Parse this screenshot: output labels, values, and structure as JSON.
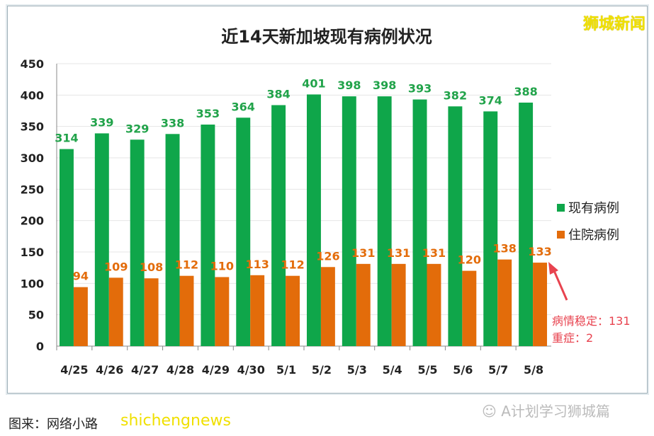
{
  "chart_data": {
    "type": "bar",
    "title": "近14天新加坡现有病例状况",
    "categories": [
      "4/25",
      "4/26",
      "4/27",
      "4/28",
      "4/29",
      "4/30",
      "5/1",
      "5/2",
      "5/3",
      "5/4",
      "5/5",
      "5/6",
      "5/7",
      "5/8"
    ],
    "series": [
      {
        "name": "现有病例",
        "color": "#0fa64a",
        "label_color": "#21a34a",
        "values": [
          314,
          339,
          329,
          338,
          353,
          364,
          384,
          401,
          398,
          398,
          393,
          382,
          374,
          388
        ]
      },
      {
        "name": "住院病例",
        "color": "#e36c0a",
        "label_color": "#e36c0a",
        "values": [
          94,
          109,
          108,
          112,
          110,
          113,
          112,
          126,
          131,
          131,
          131,
          120,
          138,
          133
        ]
      }
    ],
    "ylim": [
      0,
      450
    ],
    "yticks": [
      0,
      50,
      100,
      150,
      200,
      250,
      300,
      350,
      400,
      450
    ],
    "grid": true,
    "legend": "right",
    "annotation": {
      "line1": "病情稳定：131",
      "line2": "重症：2",
      "color": "#e8434f"
    }
  },
  "brand": "狮城新闻",
  "source": "图来：网络小路",
  "watermark": "shichengnews",
  "wechat": "A计划学习狮城篇"
}
